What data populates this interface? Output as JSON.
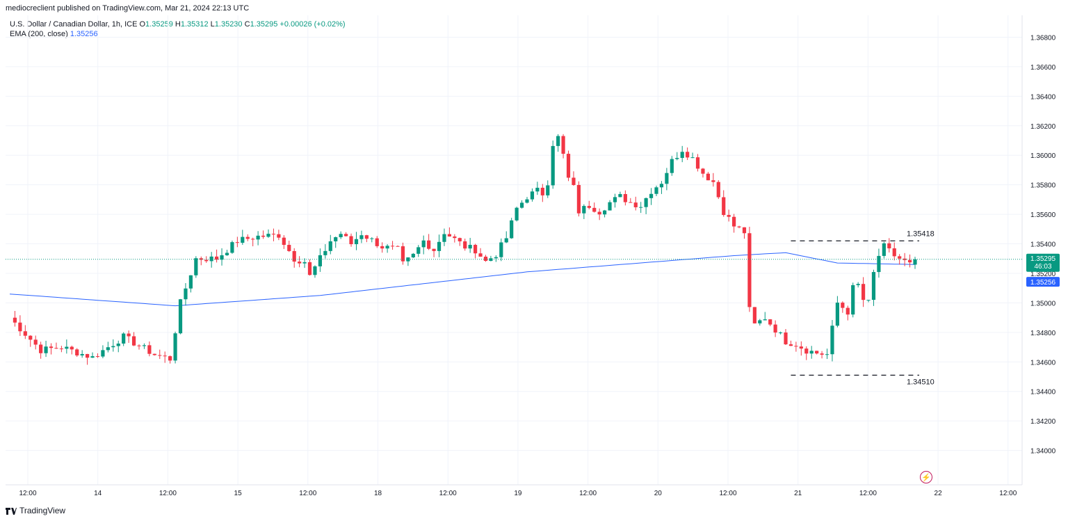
{
  "header": {
    "published": "mediocreclient published on TradingView.com, Mar 21, 2024 22:13 UTC"
  },
  "legend": {
    "symbol": "U.S. Dollar / Canadian Dollar, 1h, ICE",
    "o_label": "O",
    "o": "1.35259",
    "h_label": "H",
    "h": "1.35312",
    "l_label": "L",
    "l": "1.35230",
    "c_label": "C",
    "c": "1.35295",
    "change": "+0.00026 (+0.02%)",
    "ema_label": "EMA (200, close)",
    "ema_value": "1.35256"
  },
  "footer": {
    "brand": "TradingView"
  },
  "colors": {
    "up": "#089981",
    "down": "#f23645",
    "ema": "#2962ff",
    "grid": "#f0f3fa"
  },
  "chart_data": {
    "type": "candlestick",
    "symbol": "USDCAD",
    "timeframe": "1h",
    "ylim": [
      1.338,
      1.3692
    ],
    "y_ticks": [
      "1.36800",
      "1.36600",
      "1.36400",
      "1.36200",
      "1.36000",
      "1.35800",
      "1.35600",
      "1.35400",
      "1.35200",
      "1.35000",
      "1.34800",
      "1.34600",
      "1.34400",
      "1.34200",
      "1.34000"
    ],
    "x_ticks": [
      "12:00",
      "14",
      "12:00",
      "15",
      "12:00",
      "18",
      "12:00",
      "19",
      "12:00",
      "20",
      "12:00",
      "21",
      "12:00",
      "22",
      "12:00"
    ],
    "price_label": {
      "value": "1.35295",
      "countdown": "46:03"
    },
    "ema_label": "1.35256",
    "annotations": [
      {
        "label": "1.35418",
        "price": 1.3542,
        "style": "dashed",
        "from_candle": 151,
        "to_candle": 175
      },
      {
        "label": "1.34510",
        "price": 1.3451,
        "style": "dashed",
        "from_candle": 151,
        "to_candle": 175
      }
    ],
    "ema_anchors": [
      [
        0,
        1.3506
      ],
      [
        32,
        1.3498
      ],
      [
        60,
        1.3505
      ],
      [
        75,
        1.3511
      ],
      [
        100,
        1.3521
      ],
      [
        140,
        1.3532
      ],
      [
        150,
        1.3534
      ],
      [
        160,
        1.3527
      ],
      [
        175,
        1.3526
      ]
    ],
    "anchors": [
      [
        0,
        1.349
      ],
      [
        6,
        1.3468
      ],
      [
        10,
        1.347
      ],
      [
        16,
        1.3463
      ],
      [
        22,
        1.3477
      ],
      [
        28,
        1.3465
      ],
      [
        31,
        1.3462
      ],
      [
        33,
        1.35
      ],
      [
        36,
        1.353
      ],
      [
        40,
        1.353
      ],
      [
        44,
        1.3542
      ],
      [
        48,
        1.3545
      ],
      [
        52,
        1.3546
      ],
      [
        55,
        1.353
      ],
      [
        57,
        1.3528
      ],
      [
        58,
        1.3518
      ],
      [
        62,
        1.3542
      ],
      [
        64,
        1.3547
      ],
      [
        66,
        1.354
      ],
      [
        68,
        1.3547
      ],
      [
        72,
        1.3538
      ],
      [
        75,
        1.3536
      ],
      [
        76,
        1.3526
      ],
      [
        78,
        1.3532
      ],
      [
        80,
        1.3542
      ],
      [
        82,
        1.3536
      ],
      [
        84,
        1.3548
      ],
      [
        86,
        1.3543
      ],
      [
        88,
        1.3538
      ],
      [
        90,
        1.3536
      ],
      [
        92,
        1.3528
      ],
      [
        94,
        1.3533
      ],
      [
        96,
        1.3544
      ],
      [
        98,
        1.3564
      ],
      [
        100,
        1.3572
      ],
      [
        102,
        1.3576
      ],
      [
        103,
        1.3574
      ],
      [
        104,
        1.3582
      ],
      [
        105,
        1.3608
      ],
      [
        106,
        1.3612
      ],
      [
        107,
        1.36
      ],
      [
        108,
        1.3584
      ],
      [
        109,
        1.3578
      ],
      [
        110,
        1.3562
      ],
      [
        112,
        1.3566
      ],
      [
        114,
        1.3562
      ],
      [
        116,
        1.3568
      ],
      [
        118,
        1.3572
      ],
      [
        120,
        1.3568
      ],
      [
        122,
        1.3566
      ],
      [
        124,
        1.3576
      ],
      [
        126,
        1.3582
      ],
      [
        128,
        1.3596
      ],
      [
        130,
        1.3604
      ],
      [
        132,
        1.3598
      ],
      [
        134,
        1.3588
      ],
      [
        136,
        1.3582
      ],
      [
        138,
        1.3562
      ],
      [
        140,
        1.3552
      ],
      [
        142,
        1.3548
      ],
      [
        143,
        1.3495
      ],
      [
        144,
        1.3485
      ],
      [
        146,
        1.349
      ],
      [
        148,
        1.3482
      ],
      [
        150,
        1.3474
      ],
      [
        152,
        1.3472
      ],
      [
        154,
        1.3468
      ],
      [
        156,
        1.3466
      ],
      [
        158,
        1.3465
      ],
      [
        160,
        1.35
      ],
      [
        162,
        1.3494
      ],
      [
        163,
        1.351
      ],
      [
        164,
        1.3512
      ],
      [
        165,
        1.3502
      ],
      [
        166,
        1.35
      ],
      [
        167,
        1.352
      ],
      [
        168,
        1.3532
      ],
      [
        169,
        1.3538
      ],
      [
        171,
        1.3532
      ],
      [
        173,
        1.3528
      ],
      [
        174,
        1.3526
      ],
      [
        175,
        1.353
      ]
    ]
  }
}
